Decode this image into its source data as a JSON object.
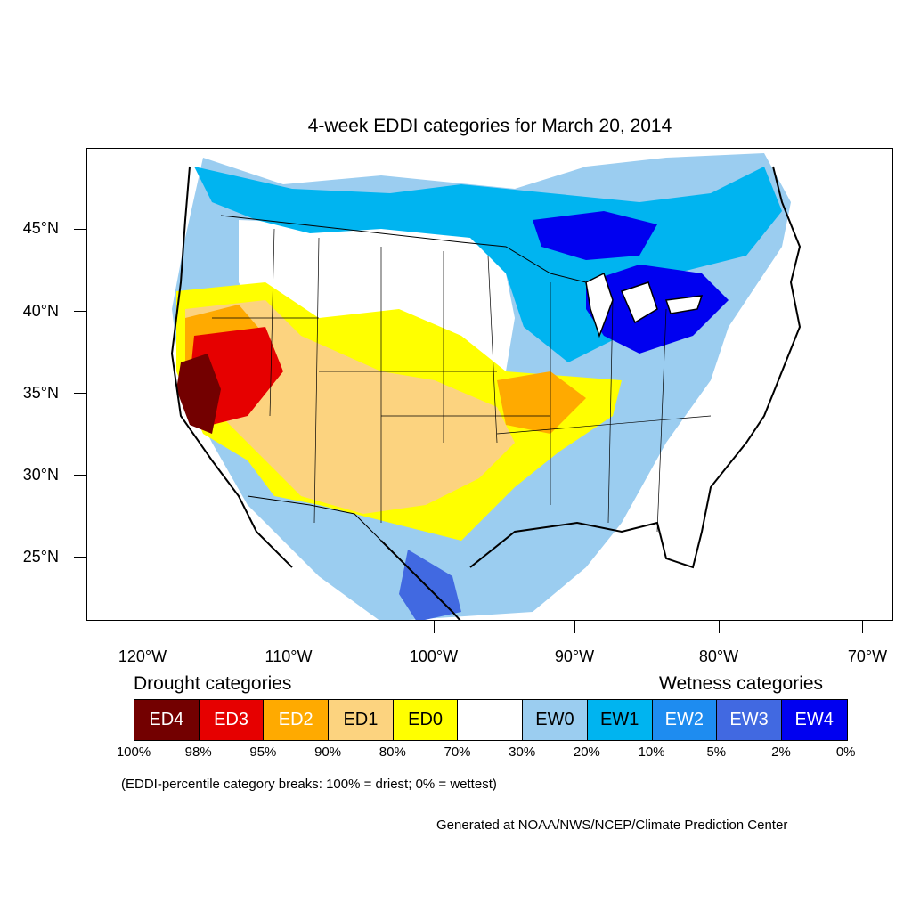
{
  "title": "4-week EDDI categories for March 20, 2014",
  "lat_labels": [
    "45°N",
    "40°N",
    "35°N",
    "30°N",
    "25°N"
  ],
  "lon_labels": [
    "120°W",
    "110°W",
    "100°W",
    "90°W",
    "80°W",
    "70°W"
  ],
  "legend": {
    "drought_heading": "Drought categories",
    "wetness_heading": "Wetness categories",
    "categories": [
      {
        "label": "ED4",
        "color": "#730000",
        "text_color": "#ffffff"
      },
      {
        "label": "ED3",
        "color": "#e60000",
        "text_color": "#ffffff"
      },
      {
        "label": "ED2",
        "color": "#ffaa00",
        "text_color": "#ffffff"
      },
      {
        "label": "ED1",
        "color": "#fcd37f",
        "text_color": "#000000"
      },
      {
        "label": "ED0",
        "color": "#ffff00",
        "text_color": "#000000"
      },
      {
        "label": "",
        "color": "#ffffff",
        "text_color": "#000000"
      },
      {
        "label": "EW0",
        "color": "#9bcdf0",
        "text_color": "#000000"
      },
      {
        "label": "EW1",
        "color": "#00b4f0",
        "text_color": "#000000"
      },
      {
        "label": "EW2",
        "color": "#1e8cf0",
        "text_color": "#ffffff"
      },
      {
        "label": "EW3",
        "color": "#4169e1",
        "text_color": "#ffffff"
      },
      {
        "label": "EW4",
        "color": "#0000f0",
        "text_color": "#ffffff"
      }
    ],
    "percentiles": [
      "100%",
      "98%",
      "95%",
      "90%",
      "80%",
      "70%",
      "30%",
      "20%",
      "10%",
      "5%",
      "2%",
      "0%"
    ]
  },
  "note": "(EDDI-percentile category breaks: 100% = driest; 0% = wettest)",
  "credit": "Generated at NOAA/NWS/NCEP/Climate Prediction Center"
}
